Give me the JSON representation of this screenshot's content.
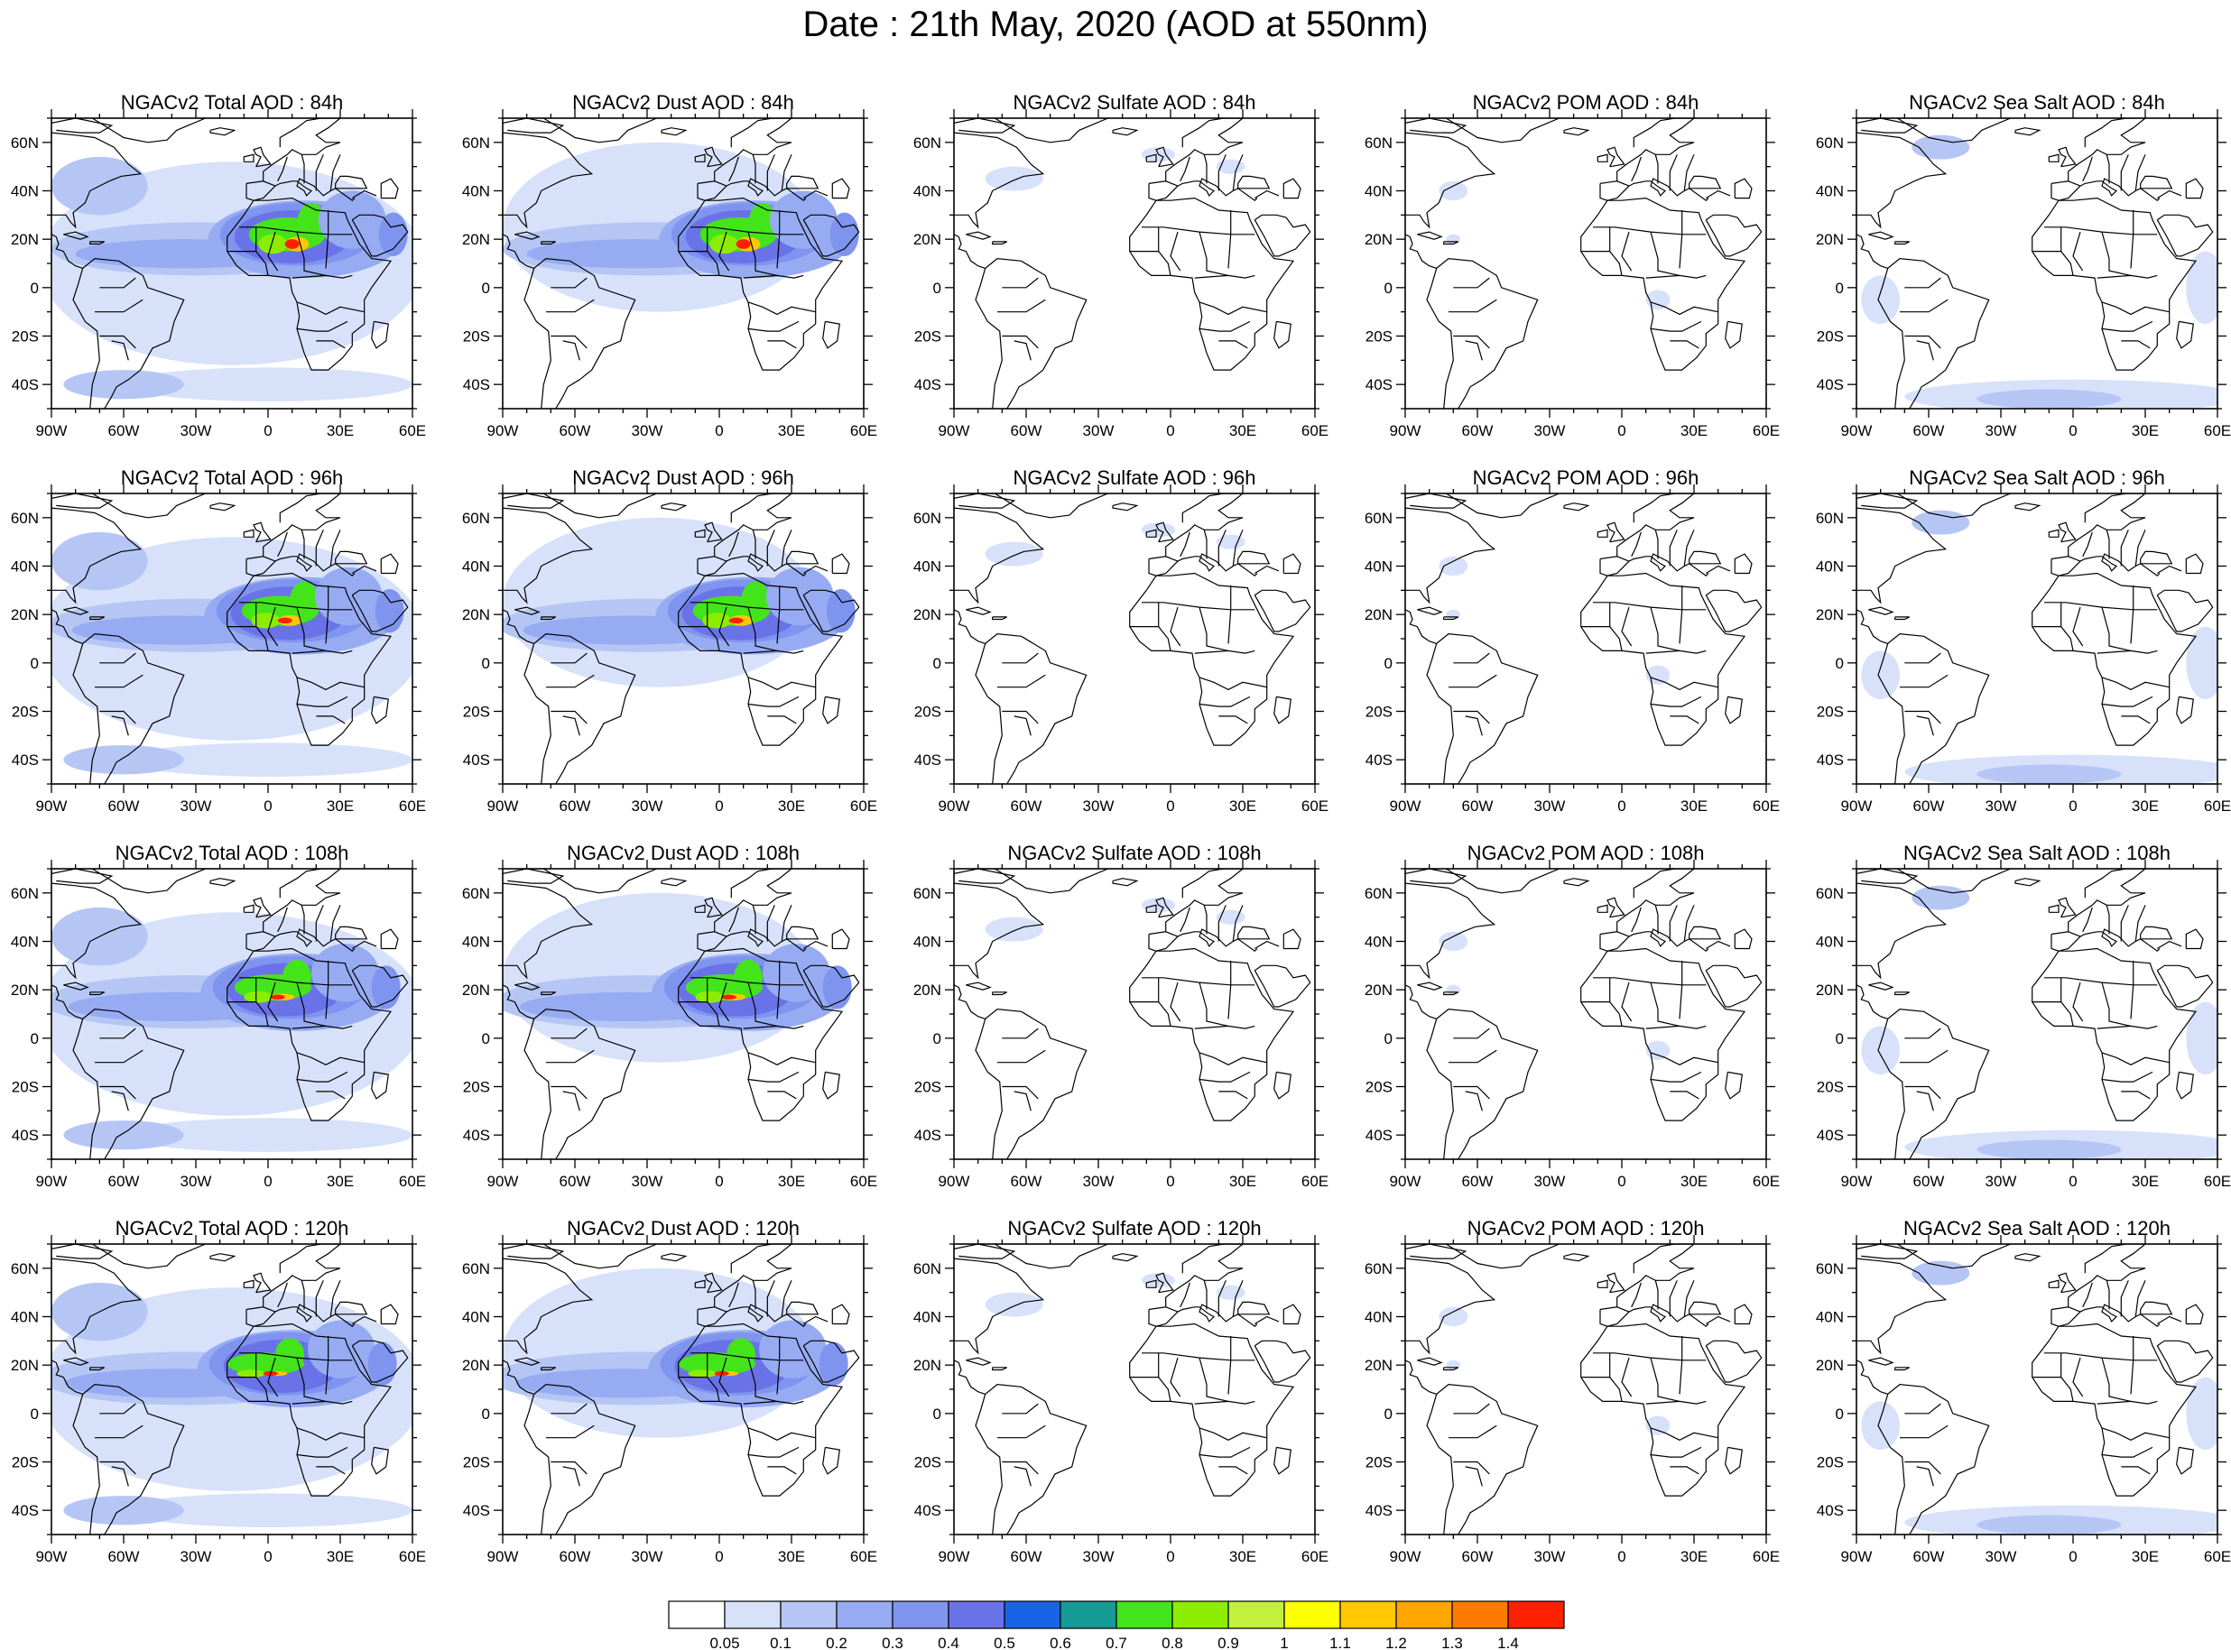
{
  "title": "Date : 21th May, 2020 (AOD at 550nm)",
  "panel_titles": [
    [
      "NGACv2 Total AOD : 84h",
      "NGACv2 Dust AOD : 84h",
      "NGACv2 Sulfate AOD : 84h",
      "NGACv2 POM AOD : 84h",
      "NGACv2 Sea Salt AOD : 84h"
    ],
    [
      "NGACv2 Total AOD : 96h",
      "NGACv2 Dust AOD : 96h",
      "NGACv2 Sulfate AOD : 96h",
      "NGACv2 POM AOD : 96h",
      "NGACv2 Sea Salt AOD : 96h"
    ],
    [
      "NGACv2 Total AOD : 108h",
      "NGACv2 Dust AOD : 108h",
      "NGACv2 Sulfate AOD : 108h",
      "NGACv2 POM AOD : 108h",
      "NGACv2 Sea Salt AOD : 108h"
    ],
    [
      "NGACv2 Total AOD : 120h",
      "NGACv2 Dust AOD : 120h",
      "NGACv2 Sulfate AOD : 120h",
      "NGACv2 POM AOD : 120h",
      "NGACv2 Sea Salt  AOD : 120h"
    ]
  ],
  "lon_labels": [
    "90W",
    "60W",
    "30W",
    "0",
    "30E",
    "60E"
  ],
  "lat_labels": [
    "60N",
    "40N",
    "20N",
    "0",
    "20S",
    "40S"
  ],
  "map_extent": {
    "lon": [
      -90,
      60
    ],
    "lat": [
      -50,
      70
    ]
  },
  "colorbar": {
    "colors": [
      "#ffffff",
      "#d7e1fa",
      "#b5c6f5",
      "#96abf2",
      "#7f94ef",
      "#6a72e8",
      "#1864e6",
      "#169a96",
      "#44e41a",
      "#8ced00",
      "#c2f03c",
      "#ffff00",
      "#ffc800",
      "#ffa500",
      "#ff7b00",
      "#ff2000"
    ],
    "labels": [
      "0.05",
      "0.1",
      "0.2",
      "0.3",
      "0.4",
      "0.5",
      "0.6",
      "0.7",
      "0.8",
      "0.9",
      "1",
      "1.1",
      "1.2",
      "1.3",
      "1.4"
    ]
  },
  "colors": {
    "land_outline": "#000000",
    "frame": "#000000"
  }
}
